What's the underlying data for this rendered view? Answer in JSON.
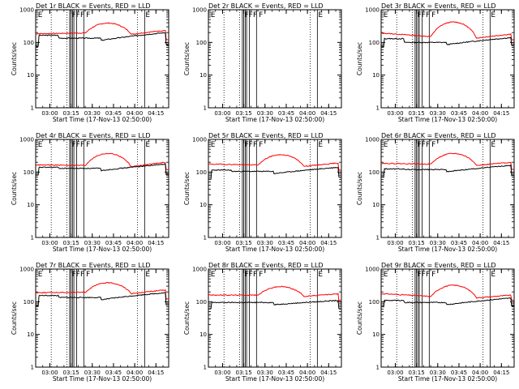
{
  "figure": {
    "type": "line",
    "y_scale": "log",
    "ylim": [
      1,
      1000
    ],
    "x_range_hours": [
      2.8333,
      4.4
    ],
    "ylabel": "Counts/sec",
    "xlabel": "Start Time (17-Nov-13 02:50:00)",
    "x_tick_labels": [
      "03:00",
      "03:15",
      "03:30",
      "03:45",
      "04:00",
      "04:15"
    ],
    "x_tick_values": [
      "03:00",
      "03:15",
      "03:30",
      "03:45",
      "04:00",
      "04:15"
    ],
    "y_tick_labels": [
      "1",
      "10",
      "100",
      "1000"
    ],
    "y_tick_values": [
      1,
      10,
      100,
      1000
    ],
    "series_colors": {
      "Events": "#000000",
      "LLD": "#ff0000"
    },
    "dotted_vertical_lines": [
      "03:01",
      "03:12",
      "04:02"
    ],
    "solid_vertical_lines": [
      "03:14",
      "03:15",
      "03:16",
      "03:17",
      "03:19",
      "03:24",
      "04:07"
    ],
    "markers": [
      {
        "text": "E",
        "at": "02:51"
      },
      {
        "text": "FFF",
        "at": "03:15"
      },
      {
        "text": "F",
        "at": "03:25"
      },
      {
        "text": "E",
        "at": "04:07"
      }
    ]
  },
  "chart_data": [
    {
      "title": "Det 1r BLACK = Events, RED = LLD",
      "events": {
        "start": 75,
        "plateau": 165,
        "mid": 135,
        "end": 200,
        "last": 85
      },
      "lld": {
        "start": 185,
        "flat": 195,
        "peak": 390,
        "end": 235,
        "last": 120
      }
    },
    {
      "title": "Det 2r BLACK = Events, RED = LLD",
      "events": null,
      "lld": null
    },
    {
      "title": "Det 3r BLACK = Events, RED = LLD",
      "events": {
        "start": 75,
        "plateau": 130,
        "mid": 100,
        "end": 140,
        "last": 80
      },
      "lld": {
        "start": 190,
        "flat": 150,
        "peak": 420,
        "end": 180,
        "last": 120
      }
    },
    {
      "title": "Det 4r BLACK = Events, RED = LLD",
      "events": {
        "start": 80,
        "plateau": 140,
        "mid": 130,
        "end": 175,
        "last": 85
      },
      "lld": {
        "start": 165,
        "flat": 160,
        "peak": 370,
        "end": 200,
        "last": 120
      }
    },
    {
      "title": "Det 5r BLACK = Events, RED = LLD",
      "events": {
        "start": 60,
        "plateau": 115,
        "mid": 105,
        "end": 140,
        "last": 70
      },
      "lld": {
        "start": 175,
        "flat": 165,
        "peak": 340,
        "end": 190,
        "last": 115
      }
    },
    {
      "title": "Det 6r BLACK = Events, RED = LLD",
      "events": {
        "start": 70,
        "plateau": 125,
        "mid": 120,
        "end": 160,
        "last": 80
      },
      "lld": {
        "start": 185,
        "flat": 175,
        "peak": 370,
        "end": 200,
        "last": 120
      }
    },
    {
      "title": "Det 7r BLACK = Events, RED = LLD",
      "events": {
        "start": 75,
        "plateau": 155,
        "mid": 135,
        "end": 190,
        "last": 80
      },
      "lld": {
        "start": 190,
        "flat": 195,
        "peak": 380,
        "end": 230,
        "last": 120
      }
    },
    {
      "title": "Det 8r BLACK = Events, RED = LLD",
      "events": {
        "start": 60,
        "plateau": 95,
        "mid": 95,
        "end": 110,
        "last": 60
      },
      "lld": {
        "start": 160,
        "flat": 160,
        "peak": 290,
        "end": 175,
        "last": 110
      }
    },
    {
      "title": "Det 9r BLACK = Events, RED = LLD",
      "events": {
        "start": 70,
        "plateau": 110,
        "mid": 95,
        "end": 130,
        "last": 75
      },
      "lld": {
        "start": 175,
        "flat": 145,
        "peak": 320,
        "end": 160,
        "last": 110
      }
    }
  ]
}
